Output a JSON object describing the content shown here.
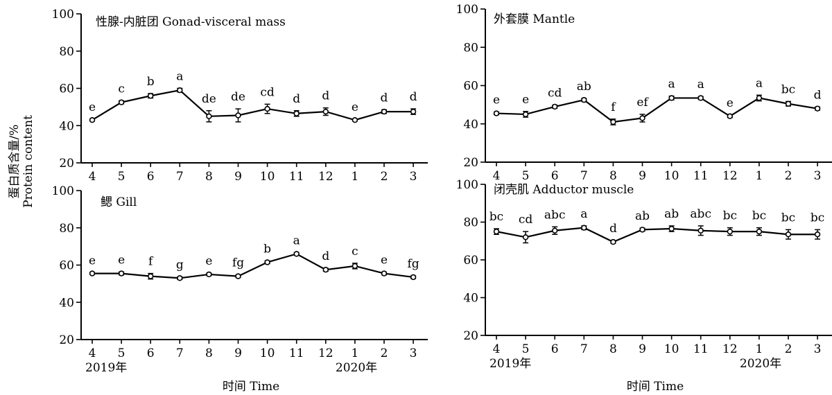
{
  "figure": {
    "ylabel_cn": "蛋白质含量/%",
    "ylabel_en": "Protein content",
    "xlabel": "时间 Time"
  },
  "chart_data": [
    {
      "type": "line",
      "title": "性腺-内脏团 Gonad-visceral mass",
      "categories": [
        "4",
        "5",
        "6",
        "7",
        "8",
        "9",
        "10",
        "11",
        "12",
        "1",
        "2",
        "3"
      ],
      "year_labels": [
        "2019年",
        "2020年"
      ],
      "ylim": [
        20,
        100
      ],
      "yticks": [
        20,
        40,
        60,
        80,
        100
      ],
      "values": [
        43,
        52.5,
        56,
        59,
        45,
        45.5,
        49,
        46.5,
        47.5,
        43,
        47.5,
        47.5
      ],
      "errors": [
        0.5,
        0.8,
        1.2,
        1.0,
        3.0,
        3.5,
        2.5,
        1.5,
        2.0,
        0.5,
        1.0,
        1.5
      ],
      "labels": [
        "e",
        "c",
        "b",
        "a",
        "de",
        "de",
        "cd",
        "d",
        "d",
        "e",
        "d",
        "d"
      ],
      "show_year_labels": false
    },
    {
      "type": "line",
      "title": "外套膜 Mantle",
      "categories": [
        "4",
        "5",
        "6",
        "7",
        "8",
        "9",
        "10",
        "11",
        "12",
        "1",
        "2",
        "3"
      ],
      "year_labels": [
        "2019年",
        "2020年"
      ],
      "ylim": [
        20,
        100
      ],
      "yticks": [
        20,
        40,
        60,
        80,
        100
      ],
      "values": [
        45.5,
        45,
        49,
        52.5,
        41,
        43,
        53.5,
        53.5,
        44,
        53.5,
        50.5,
        48
      ],
      "errors": [
        0.7,
        1.5,
        0.8,
        0.8,
        1.5,
        2.0,
        1.0,
        0.8,
        0.7,
        1.5,
        1.2,
        0.8
      ],
      "labels": [
        "e",
        "e",
        "cd",
        "ab",
        "f",
        "ef",
        "a",
        "a",
        "e",
        "a",
        "bc",
        "d"
      ],
      "show_year_labels": false
    },
    {
      "type": "line",
      "title": "鳃 Gill",
      "categories": [
        "4",
        "5",
        "6",
        "7",
        "8",
        "9",
        "10",
        "11",
        "12",
        "1",
        "2",
        "3"
      ],
      "year_labels": [
        "2019年",
        "2020年"
      ],
      "ylim": [
        20,
        100
      ],
      "yticks": [
        20,
        40,
        60,
        80,
        100
      ],
      "values": [
        55.5,
        55.5,
        54,
        53,
        55,
        54,
        61.5,
        66,
        57.5,
        59.5,
        55.5,
        53.5
      ],
      "errors": [
        0.5,
        0.8,
        1.5,
        0.7,
        0.7,
        0.7,
        0.7,
        0.7,
        0.8,
        1.5,
        0.7,
        0.7
      ],
      "labels": [
        "e",
        "e",
        "f",
        "g",
        "e",
        "fg",
        "b",
        "a",
        "d",
        "c",
        "e",
        "fg"
      ],
      "show_year_labels": true
    },
    {
      "type": "line",
      "title": "闭壳肌 Adductor muscle",
      "categories": [
        "4",
        "5",
        "6",
        "7",
        "8",
        "9",
        "10",
        "11",
        "12",
        "1",
        "2",
        "3"
      ],
      "year_labels": [
        "2019年",
        "2020年"
      ],
      "ylim": [
        20,
        100
      ],
      "yticks": [
        20,
        40,
        60,
        80,
        100
      ],
      "values": [
        75,
        72,
        75.5,
        77,
        69.5,
        76,
        76.5,
        75.5,
        75,
        75,
        73.5,
        73.5
      ],
      "errors": [
        1.5,
        3.0,
        2.0,
        1.0,
        0.7,
        0.8,
        1.5,
        2.5,
        2.0,
        2.0,
        2.5,
        2.5
      ],
      "labels": [
        "bc",
        "cd",
        "abc",
        "a",
        "d",
        "ab",
        "ab",
        "abc",
        "bc",
        "bc",
        "bc",
        "bc"
      ],
      "show_year_labels": true
    }
  ]
}
